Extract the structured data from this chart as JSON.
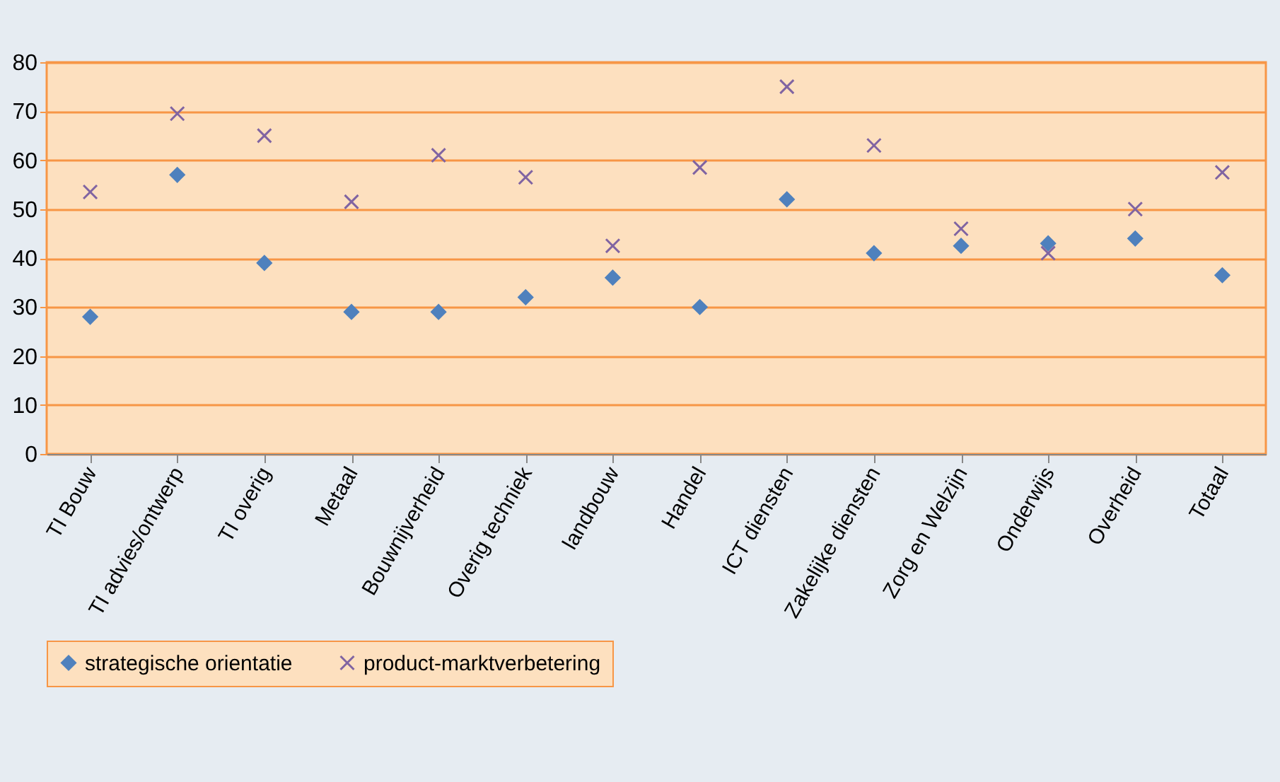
{
  "chart_data": {
    "type": "scatter",
    "categories": [
      "TI Bouw",
      "TI advies/ontwerp",
      "TI overig",
      "Metaal",
      "Bouwnijverheid",
      "Overig techniek",
      "landbouw",
      "Handel",
      "ICT diensten",
      "Zakelijke diensten",
      "Zorg en Welzijn",
      "Onderwijs",
      "Overheid",
      "Totaal"
    ],
    "series": [
      {
        "name": "strategische orientatie",
        "color": "#4f81bd",
        "marker": "diamond",
        "values": [
          28,
          57,
          39,
          29,
          29,
          32,
          36,
          30,
          52,
          41,
          42.5,
          43,
          44,
          36.5
        ]
      },
      {
        "name": "product-marktverbetering",
        "color": "#8064a2",
        "marker": "cross",
        "values": [
          53.5,
          69.5,
          65,
          51.5,
          61,
          56.5,
          42.5,
          58.5,
          75,
          63,
          46,
          41,
          50,
          57.5
        ]
      }
    ],
    "ylim": [
      0,
      80
    ],
    "yticks": [
      0,
      10,
      20,
      30,
      40,
      50,
      60,
      70,
      80
    ],
    "grid": "y",
    "legend": "bottom"
  }
}
